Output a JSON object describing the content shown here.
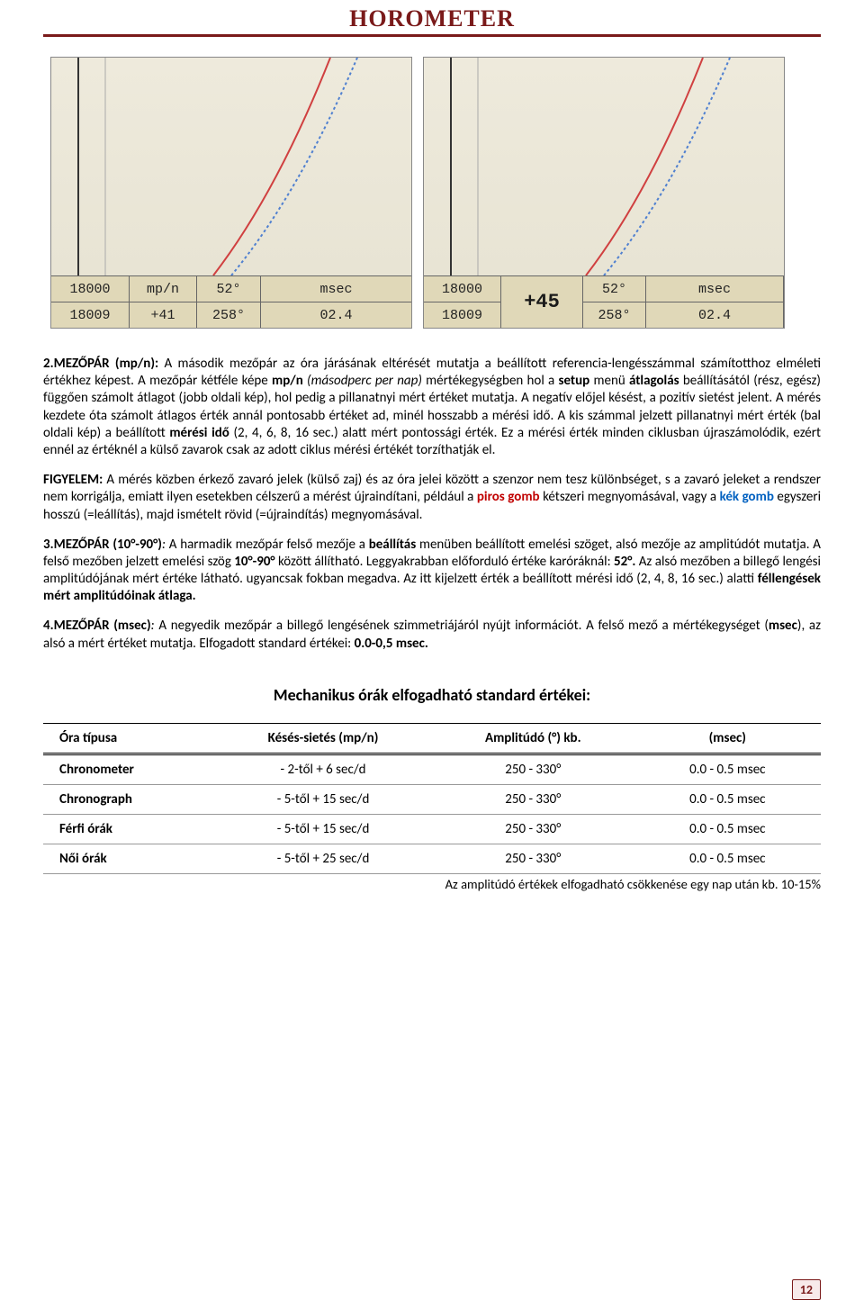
{
  "header": {
    "title": "HOROMETER"
  },
  "photos": {
    "left": {
      "row1": {
        "a": "18000",
        "b": "mp/n",
        "c": "52°",
        "d": "msec"
      },
      "row2": {
        "a": "18009",
        "b": "+41",
        "c": "258°",
        "d": "02.4"
      }
    },
    "right": {
      "row1": {
        "a": "18000",
        "b_big": "+45",
        "c": "52°",
        "d": "msec"
      },
      "row2": {
        "a": "18009",
        "b": "",
        "c": "258°",
        "d": "02.4"
      }
    }
  },
  "p1": {
    "lead_b": "2.MEZŐPÁR (mp/n):",
    "t1": " A második mezőpár az óra járásának eltérését mutatja a beállított referencia-lengésszámmal számítotthoz elméleti értékhez képest. A mezőpár kétféle képe ",
    "b2": "mp/n",
    "t2_i": " (másodperc per nap) ",
    "t3": "mértékegységben hol a ",
    "b3": "setup",
    "t4": " menü ",
    "b4": "átlagolás",
    "t5": " beállításától (rész, egész) függően számolt átlagot (jobb oldali kép), hol pedig a pillanatnyi mért értéket mutatja. A negatív előjel késést, a pozitív sietést jelent. A mérés kezdete óta számolt átlagos érték annál pontosabb értéket ad, minél hosszabb a mérési idő. A kis számmal jelzett pillanatnyi mért érték (bal oldali kép) a beállított ",
    "b5": "mérési idő",
    "t6": " (2, 4, 6, 8, 16 sec.) alatt mért pontossági érték. Ez a mérési érték minden ciklusban újraszámolódik, ezért ennél az értéknél a külső zavarok csak az adott ciklus mérési értékét torzíthatják el."
  },
  "p2": {
    "b1": "FIGYELEM:",
    "t1": " A mérés közben érkező zavaró jelek (külső zaj) és az óra jelei között a szenzor nem tesz különbséget, s a zavaró jeleket a rendszer nem korrigálja, emiatt ilyen esetekben célszerű a mérést újraindítani, például a ",
    "r1": "piros gomb",
    "t2": " kétszeri megnyomásával, vagy a ",
    "bl1": "kék gomb",
    "t3": " egyszeri hosszú (=leállítás), majd ismételt rövid (=újraindítás) megnyomásával."
  },
  "p3": {
    "lead_b": "3.MEZŐPÁR (10°-90°)",
    "i1": ":",
    "t1": " A harmadik mezőpár felső mezője a ",
    "b2": "beállítás",
    "t2": " menüben beállított emelési szöget, alsó mezője az amplitúdót mutatja. A felső mezőben jelzett emelési szög ",
    "b3": "10°-90°",
    "t3": " között állítható. Leggyakrabban előforduló értéke karóráknál: ",
    "b4": "52°.",
    "t4": " Az alsó mezőben a billegő lengési amplitúdójának mért értéke látható. ugyancsak fokban megadva. Az itt kijelzett érték a beállított mérési idő (2, 4, 8, 16 sec.) alatti ",
    "b5": "féllengések mért amplitúdóinak átlaga.",
    "t5": ""
  },
  "p4": {
    "lead_b": "4.MEZŐPÁR (msec)",
    "i1": ":",
    "t1": " A negyedik mezőpár a billegő lengésének szimmetriájáról nyújt információt. A felső mező a mértékegységet (",
    "b2": "msec",
    "t2": "), az alsó a mért értéket mutatja. Elfogadott standard értékei: ",
    "b3": "0.0-0,5 msec.",
    "t3": ""
  },
  "subheading": "Mechanikus órák elfogadható standard értékei:",
  "table": {
    "headers": [
      "Óra típusa",
      "Késés-sietés (mp/n)",
      "Amplitúdó (°) kb.",
      "(msec)"
    ],
    "rows": [
      [
        "Chronometer",
        "- 2-től  + 6 sec/d",
        "250 - 330°",
        "0.0 - 0.5 msec"
      ],
      [
        "Chronograph",
        "- 5-től  + 15 sec/d",
        "250 - 330°",
        "0.0 - 0.5 msec"
      ],
      [
        "Férfi órák",
        "- 5-től  + 15 sec/d",
        "250 - 330°",
        "0.0 - 0.5 msec"
      ],
      [
        "Női órák",
        "- 5-től  + 25 sec/d",
        "250 - 330°",
        "0.0 - 0.5 msec"
      ]
    ],
    "note": "Az amplitúdó értékek elfogadható csökkenése egy nap után kb. 10-15%"
  },
  "page_number": "12"
}
